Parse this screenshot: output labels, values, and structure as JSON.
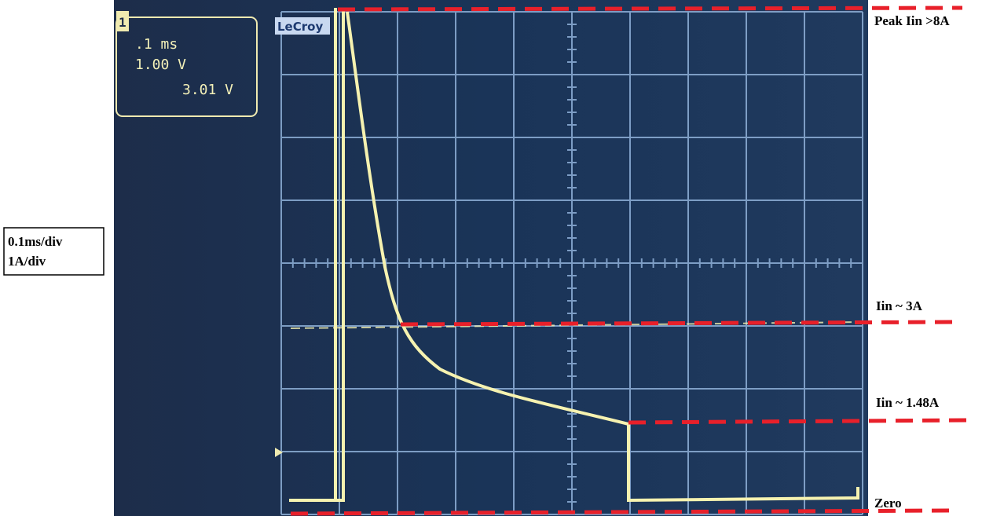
{
  "scope": {
    "channel": "1",
    "timebase": ".1 ms",
    "volts_per_div": "1.00 V",
    "offset": "3.01 V",
    "brand": "LeCroy"
  },
  "annotations": {
    "peak": "Peak Iin  >8A",
    "mid": "Iin  ~ 3A",
    "low": "Iin  ~ 1.48A",
    "zero": "Zero"
  },
  "scale": {
    "time": "0.1ms/div",
    "current": "1A/div"
  }
}
